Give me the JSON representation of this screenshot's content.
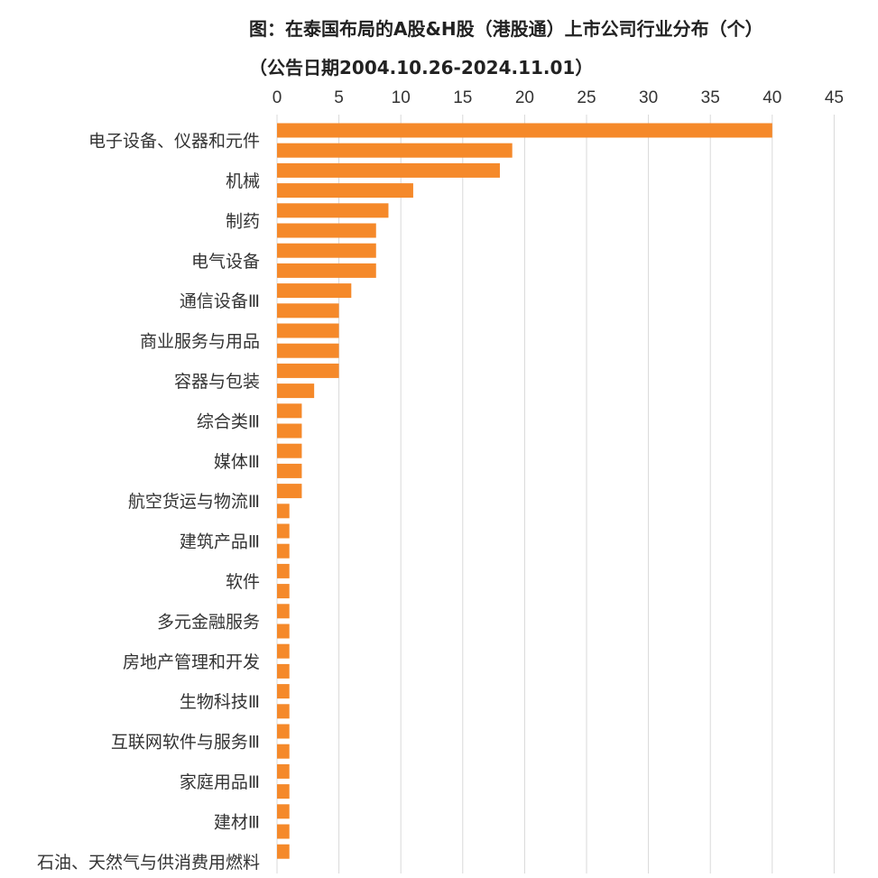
{
  "chart_data": {
    "type": "bar",
    "orientation": "horizontal",
    "title": "图：在泰国布局的A股&H股（港股通）上市公司行业分布（个）",
    "subtitle": "（公告日期2004.10.26-2024.11.01）",
    "xlim": [
      0,
      45
    ],
    "x_ticks": [
      "0",
      "5",
      "10",
      "15",
      "20",
      "25",
      "30",
      "35",
      "40",
      "45"
    ],
    "grid": true,
    "bar_color": "#F5892A",
    "grid_color": "#D9D9D9",
    "labels": [
      "电子设备、仪器和元件",
      "",
      "机械",
      "",
      "制药",
      "",
      "电气设备",
      "",
      "通信设备Ⅲ",
      "",
      "商业服务与用品",
      "",
      "容器与包装",
      "",
      "综合类Ⅲ",
      "",
      "媒体Ⅲ",
      "",
      "航空货运与物流Ⅲ",
      "",
      "建筑产品Ⅲ",
      "",
      "软件",
      "",
      "多元金融服务",
      "",
      "房地产管理和开发",
      "",
      "生物科技Ⅲ",
      "",
      "互联网软件与服务Ⅲ",
      "",
      "家庭用品Ⅲ",
      "",
      "建材Ⅲ",
      "",
      "石油、天然气与供消费用燃料"
    ],
    "values": [
      40,
      19,
      18,
      11,
      9,
      8,
      8,
      8,
      6,
      5,
      5,
      5,
      5,
      3,
      2,
      2,
      2,
      2,
      2,
      1,
      1,
      1,
      1,
      1,
      1,
      1,
      1,
      1,
      1,
      1,
      1,
      1,
      1,
      1,
      1,
      1,
      1
    ]
  }
}
